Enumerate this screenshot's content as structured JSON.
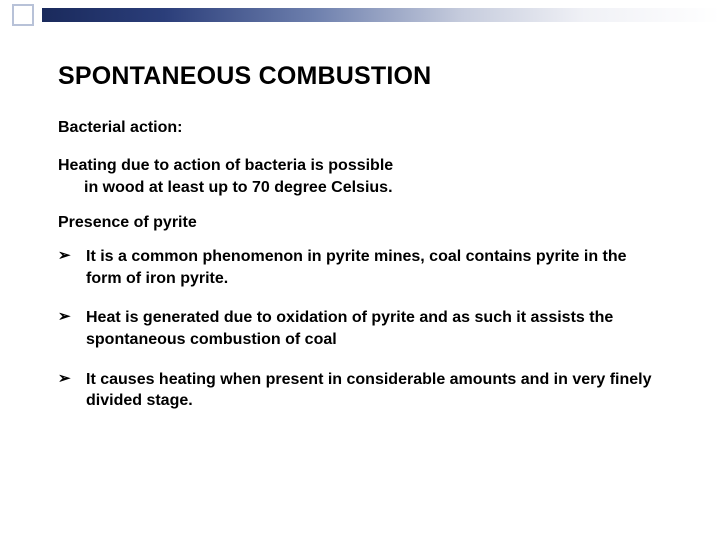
{
  "styling": {
    "background_color": "#ffffff",
    "text_color": "#000000",
    "accent_square_border": "#b8c2d8",
    "gradient_colors": [
      "#1a2a5c",
      "#2b3e7a",
      "#6d7fad",
      "#c6ccdd",
      "#f0f1f6",
      "#ffffff"
    ],
    "title_fontsize": 25,
    "body_fontsize": 16,
    "font_family": "Verdana",
    "font_weight": "bold",
    "bullet_glyph": "➢"
  },
  "title": "SPONTANEOUS COMBUSTION",
  "section1_heading": "Bacterial action:",
  "section1_body_line1": "Heating due to action of bacteria is possible",
  "section1_body_line2": "in wood at least up to 70 degree Celsius.",
  "section2_heading": "Presence of pyrite",
  "bullets": {
    "b1": "It is a common phenomenon in pyrite mines, coal contains pyrite in the form of iron pyrite.",
    "b2": "Heat is generated due to oxidation of pyrite and as such it assists the spontaneous combustion of coal",
    "b3": "It causes heating when present in considerable amounts and in very finely divided stage."
  }
}
